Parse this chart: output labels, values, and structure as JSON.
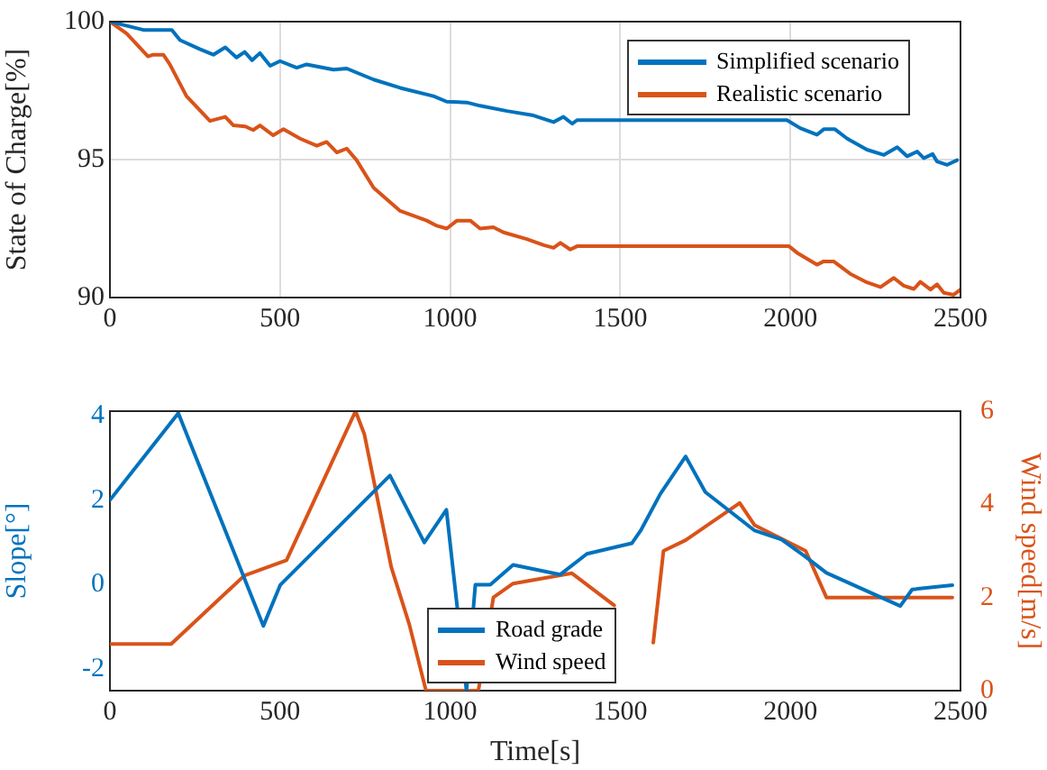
{
  "chart_data": [
    {
      "type": "line",
      "ylabel": "State of Charge[%]",
      "xlim": [
        0,
        2500
      ],
      "xticks": [
        0,
        500,
        1000,
        1500,
        2000,
        2500
      ],
      "ylim": [
        90,
        100
      ],
      "yticks": [
        90,
        95,
        100
      ],
      "grid": true,
      "legend": "top right",
      "marker": "none",
      "line_style": "solid",
      "series": [
        {
          "name": "Simplified scenario",
          "color": "#0072bd",
          "x": [
            0,
            98,
            147,
            182,
            206,
            265,
            304,
            339,
            372,
            396,
            418,
            441,
            471,
            500,
            549,
            578,
            657,
            696,
            775,
            853,
            951,
            990,
            1049,
            1088,
            1167,
            1245,
            1304,
            1333,
            1359,
            1373,
            1990,
            2029,
            2078,
            2098,
            2131,
            2167,
            2225,
            2275,
            2314,
            2343,
            2373,
            2392,
            2418,
            2431,
            2461,
            2490
          ],
          "values": [
            100,
            99.7,
            99.7,
            99.7,
            99.33,
            99.0,
            98.8,
            99.07,
            98.7,
            98.9,
            98.6,
            98.86,
            98.4,
            98.57,
            98.33,
            98.45,
            98.26,
            98.3,
            97.9,
            97.6,
            97.3,
            97.1,
            97.07,
            96.95,
            96.76,
            96.6,
            96.36,
            96.55,
            96.3,
            96.43,
            96.43,
            96.14,
            95.9,
            96.1,
            96.1,
            95.76,
            95.36,
            95.17,
            95.45,
            95.12,
            95.29,
            95.05,
            95.2,
            94.93,
            94.81,
            94.98
          ]
        },
        {
          "name": "Realistic scenario",
          "color": "#d95319",
          "x": [
            0,
            49,
            112,
            127,
            157,
            176,
            225,
            294,
            339,
            363,
            398,
            421,
            441,
            480,
            510,
            559,
            608,
            637,
            667,
            696,
            725,
            775,
            853,
            931,
            961,
            990,
            1020,
            1059,
            1088,
            1127,
            1157,
            1225,
            1275,
            1304,
            1324,
            1353,
            1373,
            1996,
            2020,
            2078,
            2098,
            2127,
            2176,
            2225,
            2265,
            2304,
            2333,
            2363,
            2382,
            2412,
            2431,
            2451,
            2480,
            2500
          ],
          "values": [
            100,
            99.57,
            98.74,
            98.8,
            98.8,
            98.45,
            97.3,
            96.4,
            96.55,
            96.24,
            96.2,
            96.07,
            96.24,
            95.88,
            96.1,
            95.76,
            95.5,
            95.64,
            95.26,
            95.4,
            94.98,
            93.98,
            93.14,
            92.79,
            92.6,
            92.5,
            92.79,
            92.79,
            92.5,
            92.55,
            92.36,
            92.12,
            91.9,
            91.8,
            91.98,
            91.74,
            91.86,
            91.86,
            91.62,
            91.19,
            91.31,
            91.31,
            90.86,
            90.55,
            90.38,
            90.71,
            90.43,
            90.31,
            90.57,
            90.29,
            90.48,
            90.17,
            90.1,
            90.29
          ]
        }
      ]
    },
    {
      "type": "line",
      "xlabel": "Time[s]",
      "ylabel": "Slope[°]",
      "y2label": "Wind speed[m/s]",
      "xlim": [
        0,
        2500
      ],
      "xticks": [
        0,
        500,
        1000,
        1500,
        2000,
        2500
      ],
      "ylim": [
        -2.5,
        4.1
      ],
      "yticks": [
        -2,
        0,
        2,
        4
      ],
      "y2lim": [
        0,
        6
      ],
      "y2ticks": [
        0,
        2,
        4,
        6
      ],
      "legend": "bottom",
      "marker": "none",
      "line_style": "solid",
      "series": [
        {
          "name": "Road grade",
          "color": "#0072bd",
          "x": [
            0,
            201,
            451,
            501,
            823,
            924,
            989,
            1048,
            1074,
            1118,
            1185,
            1323,
            1402,
            1534,
            1560,
            1618,
            1692,
            1750,
            1895,
            1974,
            2045,
            2106,
            2323,
            2358,
            2476
          ],
          "values": [
            2.0,
            4.05,
            -0.97,
            0,
            2.58,
            1.0,
            1.77,
            -2.5,
            0,
            0,
            0.47,
            0.24,
            0.73,
            0.98,
            1.28,
            2.15,
            3.03,
            2.19,
            1.28,
            1.07,
            0.66,
            0.28,
            -0.5,
            -0.11,
            -0.01
          ]
        },
        {
          "name": "Wind speed",
          "color": "#d95319",
          "axis": "y2",
          "x": [
            0,
            180,
            395,
            519,
            722,
            748,
            827,
            880,
            929,
            1083,
            1127,
            1185,
            1358,
            1482,
            1570,
            1597,
            1627,
            1692,
            1851,
            1895,
            2045,
            2106,
            2476
          ],
          "values": [
            1.0,
            1.0,
            2.47,
            2.8,
            6.0,
            5.5,
            2.65,
            1.42,
            0,
            0,
            2.0,
            2.3,
            2.52,
            1.83,
            null,
            1.03,
            3.0,
            3.23,
            4.03,
            3.55,
            3.0,
            2.0,
            2.0
          ]
        }
      ]
    }
  ]
}
